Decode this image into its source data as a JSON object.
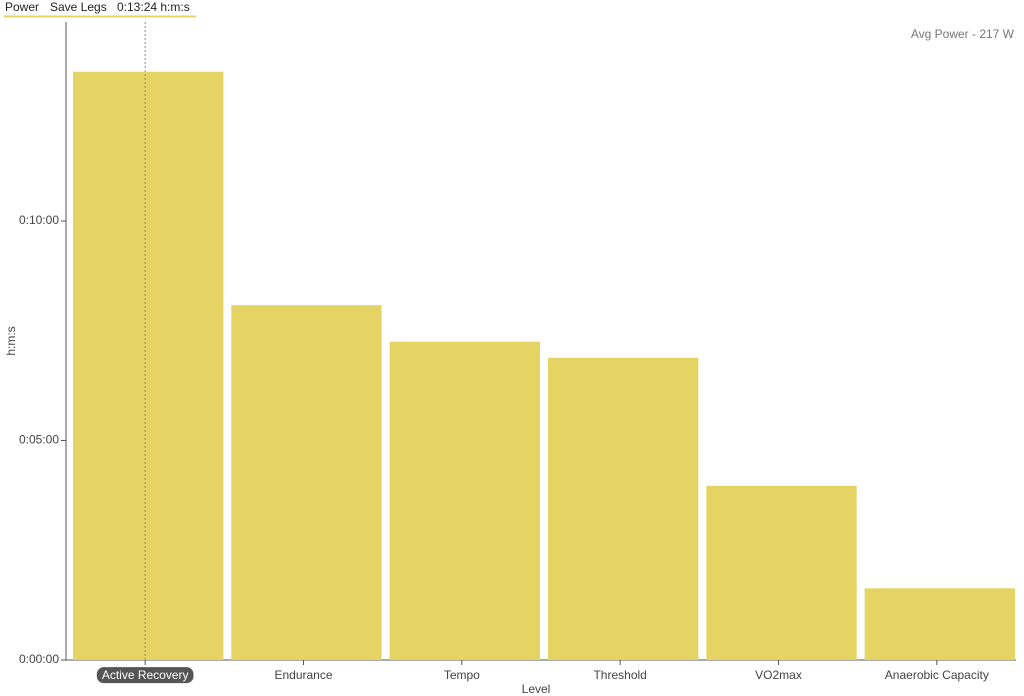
{
  "chart_data": {
    "type": "bar",
    "header": [
      "Power",
      "Save Legs",
      "0:13:24 h:m:s"
    ],
    "annotation": "Avg Power - 217 W",
    "x_label": "Level",
    "y_label": "h:m:s",
    "categories": [
      "Active Recovery",
      "Endurance",
      "Tempo",
      "Threshold",
      "VO2max",
      "Anaerobic Capacity"
    ],
    "values": [
      804,
      485,
      435,
      413,
      238,
      98
    ],
    "color": "#e5d463",
    "ylim": [
      0,
      872
    ],
    "yticks": [
      {
        "value": 0,
        "label": "0:00:00"
      },
      {
        "value": 300,
        "label": "0:05:00"
      },
      {
        "value": 600,
        "label": "0:10:00"
      }
    ],
    "highlight": 0
  }
}
